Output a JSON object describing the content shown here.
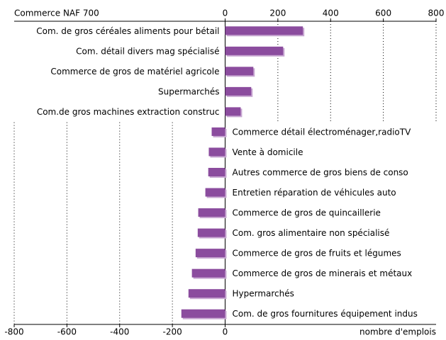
{
  "chart_data": {
    "type": "bar",
    "orientation": "horizontal",
    "title": "Commerce NAF 700",
    "x_label": "nombre d'emplois",
    "categories": [
      "Com. de gros céréales aliments pour bétail",
      "Com. détail divers mag spécialisé",
      "Commerce de gros de matériel agricole",
      "Supermarchés",
      "Com.de gros machines extraction construc",
      "Commerce détail électroménager,radioTV",
      "Vente à domicile",
      "Autres commerce de gros biens de conso",
      "Entretien réparation de véhicules auto",
      "Commerce de gros de quincaillerie",
      "Com. gros alimentaire non spécialisé",
      "Commerce de gros de fruits et légumes",
      "Commerce de gros de minerais et métaux",
      "Hypermarchés",
      "Com. de gros fournitures équipement indus"
    ],
    "values": [
      295,
      220,
      107,
      99,
      59,
      -51,
      -62,
      -64,
      -75,
      -102,
      -104,
      -112,
      -126,
      -139,
      -166
    ],
    "color": "#8b4c9e",
    "xlim": [
      -800,
      800
    ],
    "xticks": [
      0,
      200,
      400,
      600,
      800
    ],
    "x2ticks": [
      -800,
      -600,
      -400,
      -200,
      0
    ],
    "grid": true
  }
}
